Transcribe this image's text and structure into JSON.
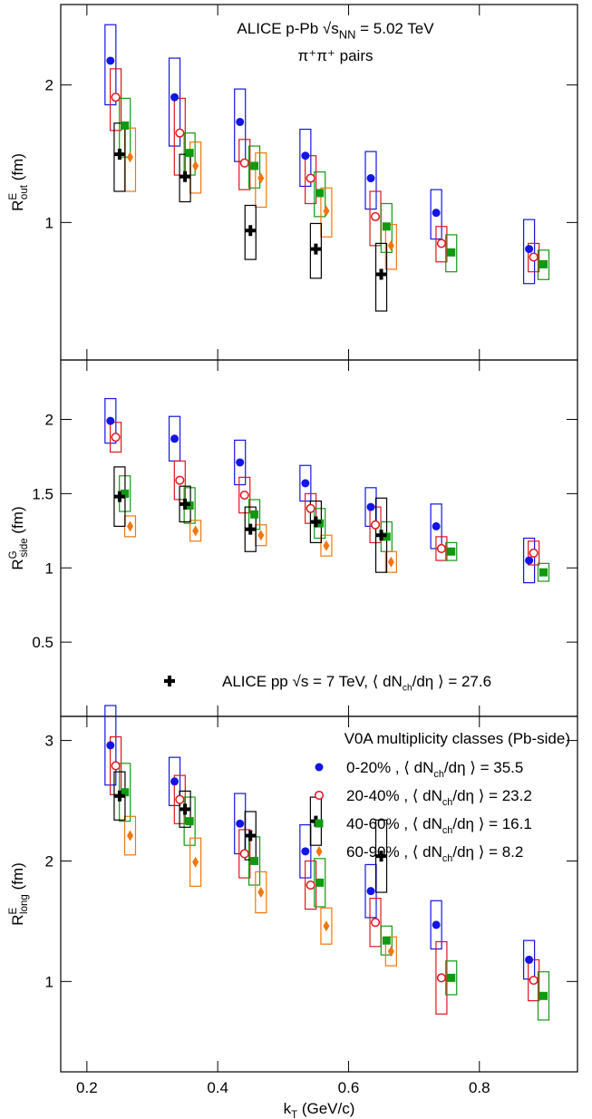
{
  "chart_data": [
    {
      "type": "scatter",
      "log_y": true,
      "ylim": [
        0.5,
        3
      ],
      "yticks": [
        1,
        2
      ],
      "title": [
        {
          "text": "ALICE p-Pb √"
        },
        {
          "text": "s"
        },
        {
          "sub": "NN"
        },
        {
          "text": " = 5.02 TeV"
        }
      ],
      "subtitle": "π⁺π⁺ pairs",
      "ylabel": [
        {
          "text": "R"
        },
        {
          "sup": "E"
        },
        {
          "sub": "out"
        },
        {
          "text": " (fm)"
        }
      ],
      "series": [
        {
          "color": "#1414e6",
          "marker": "circle",
          "x": [
            0.236,
            0.334,
            0.434,
            0.534,
            0.634,
            0.734,
            0.876
          ],
          "values": [
            2.26,
            1.88,
            1.66,
            1.4,
            1.25,
            1.05,
            0.875
          ],
          "errors": [
            0.45,
            0.41,
            0.3,
            0.2,
            0.18,
            0.13,
            0.14
          ]
        },
        {
          "color": "#e0141e",
          "marker": "open-circle",
          "x": [
            0.244,
            0.342,
            0.441,
            0.542,
            0.641,
            0.742,
            0.883
          ],
          "values": [
            1.88,
            1.57,
            1.35,
            1.25,
            1.03,
            0.9,
            0.84
          ],
          "errors": [
            0.29,
            0.3,
            0.17,
            0.15,
            0.14,
            0.08,
            0.06
          ]
        },
        {
          "color": "#119911",
          "marker": "square",
          "x": [
            0.258,
            0.357,
            0.456,
            0.556,
            0.658,
            0.757,
            0.898
          ],
          "values": [
            1.63,
            1.42,
            1.33,
            1.16,
            0.98,
            0.86,
            0.81
          ],
          "errors": [
            0.24,
            0.15,
            0.14,
            0.13,
            0.12,
            0.08,
            0.06
          ]
        },
        {
          "color": "#ee7711",
          "marker": "diamond",
          "x": [
            0.266,
            0.366,
            0.466,
            0.566,
            0.665
          ],
          "values": [
            1.39,
            1.33,
            1.25,
            1.06,
            0.89
          ],
          "errors": [
            0.22,
            0.17,
            0.17,
            0.13,
            0.1
          ]
        },
        {
          "color": "#000000",
          "marker": "cross",
          "x": [
            0.25,
            0.35,
            0.45,
            0.55,
            0.65
          ],
          "values": [
            1.41,
            1.26,
            0.96,
            0.875,
            0.77
          ],
          "errors": [
            0.24,
            0.15,
            0.13,
            0.12,
            0.13
          ]
        }
      ]
    },
    {
      "type": "scatter",
      "log_y": false,
      "ylim": [
        0,
        2.4
      ],
      "yticks": [
        0.5,
        1,
        1.5,
        2
      ],
      "ylabel": [
        {
          "text": "R"
        },
        {
          "sup": "G"
        },
        {
          "sub": "side"
        },
        {
          "text": " (fm)"
        }
      ],
      "legend": "lower-left",
      "series": [
        {
          "color": "#1414e6",
          "marker": "circle",
          "x": [
            0.236,
            0.334,
            0.434,
            0.534,
            0.634,
            0.734,
            0.876
          ],
          "values": [
            1.99,
            1.87,
            1.71,
            1.57,
            1.41,
            1.28,
            1.05
          ],
          "errors": [
            0.15,
            0.15,
            0.15,
            0.12,
            0.13,
            0.15,
            0.15
          ]
        },
        {
          "color": "#e0141e",
          "marker": "open-circle",
          "x": [
            0.244,
            0.342,
            0.441,
            0.542,
            0.641,
            0.742,
            0.883
          ],
          "values": [
            1.88,
            1.59,
            1.49,
            1.4,
            1.29,
            1.13,
            1.1
          ],
          "errors": [
            0.1,
            0.13,
            0.12,
            0.1,
            0.12,
            0.08,
            0.08
          ]
        },
        {
          "color": "#119911",
          "marker": "square",
          "x": [
            0.258,
            0.357,
            0.456,
            0.556,
            0.658,
            0.757,
            0.898
          ],
          "values": [
            1.5,
            1.42,
            1.36,
            1.3,
            1.21,
            1.11,
            0.97
          ],
          "errors": [
            0.12,
            0.12,
            0.1,
            0.1,
            0.1,
            0.06,
            0.06
          ]
        },
        {
          "color": "#ee7711",
          "marker": "diamond",
          "x": [
            0.266,
            0.366,
            0.466,
            0.566,
            0.665
          ],
          "values": [
            1.28,
            1.25,
            1.22,
            1.15,
            1.04
          ],
          "errors": [
            0.07,
            0.07,
            0.07,
            0.07,
            0.07
          ]
        },
        {
          "color": "#000000",
          "marker": "cross",
          "name": [
            {
              "text": "ALICE pp √s = 7 TeV,  ⟨ dN"
            },
            {
              "sub": "ch"
            },
            {
              "text": "/dη ⟩ = 27.6"
            }
          ],
          "x": [
            0.25,
            0.35,
            0.45,
            0.55,
            0.65
          ],
          "values": [
            1.48,
            1.43,
            1.26,
            1.31,
            1.22
          ],
          "errors": [
            0.2,
            0.12,
            0.15,
            0.14,
            0.25
          ]
        }
      ]
    },
    {
      "type": "scatter",
      "log_y": false,
      "ylim": [
        0.25,
        3.2
      ],
      "yticks": [
        1,
        2,
        3
      ],
      "xlim": [
        0.16,
        0.95
      ],
      "xticks": [
        0.2,
        0.4,
        0.6,
        0.8
      ],
      "xlabel": [
        {
          "text": "k"
        },
        {
          "sub": "T"
        },
        {
          "text": " (GeV/c)"
        }
      ],
      "ylabel": [
        {
          "text": "R"
        },
        {
          "sup": "E"
        },
        {
          "sub": "long"
        },
        {
          "text": " (fm)"
        }
      ],
      "legend": "upper-right",
      "legend_title": "V0A multiplicity classes (Pb-side)",
      "series": [
        {
          "color": "#1414e6",
          "marker": "circle",
          "name": [
            {
              "text": "0-20% , ⟨ dN"
            },
            {
              "sub": "ch"
            },
            {
              "text": "/dη ⟩ = 35.5"
            }
          ],
          "x": [
            0.236,
            0.334,
            0.434,
            0.534,
            0.634,
            0.734,
            0.876
          ],
          "values": [
            2.96,
            2.66,
            2.31,
            2.08,
            1.75,
            1.47,
            1.18
          ],
          "errors": [
            0.33,
            0.2,
            0.25,
            0.22,
            0.22,
            0.2,
            0.16
          ]
        },
        {
          "color": "#e0141e",
          "marker": "open-circle",
          "name": [
            {
              "text": "20-40% , ⟨ dN"
            },
            {
              "sub": "ch"
            },
            {
              "text": "/dη ⟩ = 23.2"
            }
          ],
          "x": [
            0.244,
            0.342,
            0.441,
            0.542,
            0.641,
            0.742,
            0.883
          ],
          "values": [
            2.79,
            2.51,
            2.06,
            1.8,
            1.49,
            1.03,
            1.01
          ],
          "errors": [
            0.24,
            0.2,
            0.2,
            0.2,
            0.2,
            0.3,
            0.17
          ]
        },
        {
          "color": "#119911",
          "marker": "square",
          "name": [
            {
              "text": "40-60% , ⟨ dN"
            },
            {
              "sub": "ch"
            },
            {
              "text": "/dη ⟩ = 16.1"
            }
          ],
          "x": [
            0.258,
            0.357,
            0.456,
            0.556,
            0.658,
            0.757,
            0.898
          ],
          "values": [
            2.57,
            2.33,
            2.0,
            1.82,
            1.34,
            1.03,
            0.88
          ],
          "errors": [
            0.24,
            0.2,
            0.2,
            0.2,
            0.12,
            0.14,
            0.2
          ]
        },
        {
          "color": "#ee7711",
          "marker": "diamond",
          "name": [
            {
              "text": "60-90% , ⟨ dN"
            },
            {
              "sub": "ch"
            },
            {
              "text": "/dη ⟩ = 8.2"
            }
          ],
          "x": [
            0.266,
            0.366,
            0.466,
            0.566,
            0.665
          ],
          "values": [
            2.21,
            1.99,
            1.74,
            1.46,
            1.25
          ],
          "errors": [
            0.16,
            0.2,
            0.17,
            0.15,
            0.12
          ]
        },
        {
          "color": "#000000",
          "marker": "cross",
          "x": [
            0.25,
            0.35,
            0.45,
            0.55,
            0.65
          ],
          "values": [
            2.54,
            2.43,
            2.21,
            2.33,
            2.04
          ],
          "errors": [
            0.2,
            0.15,
            0.2,
            0.2,
            0.3
          ]
        }
      ]
    }
  ]
}
